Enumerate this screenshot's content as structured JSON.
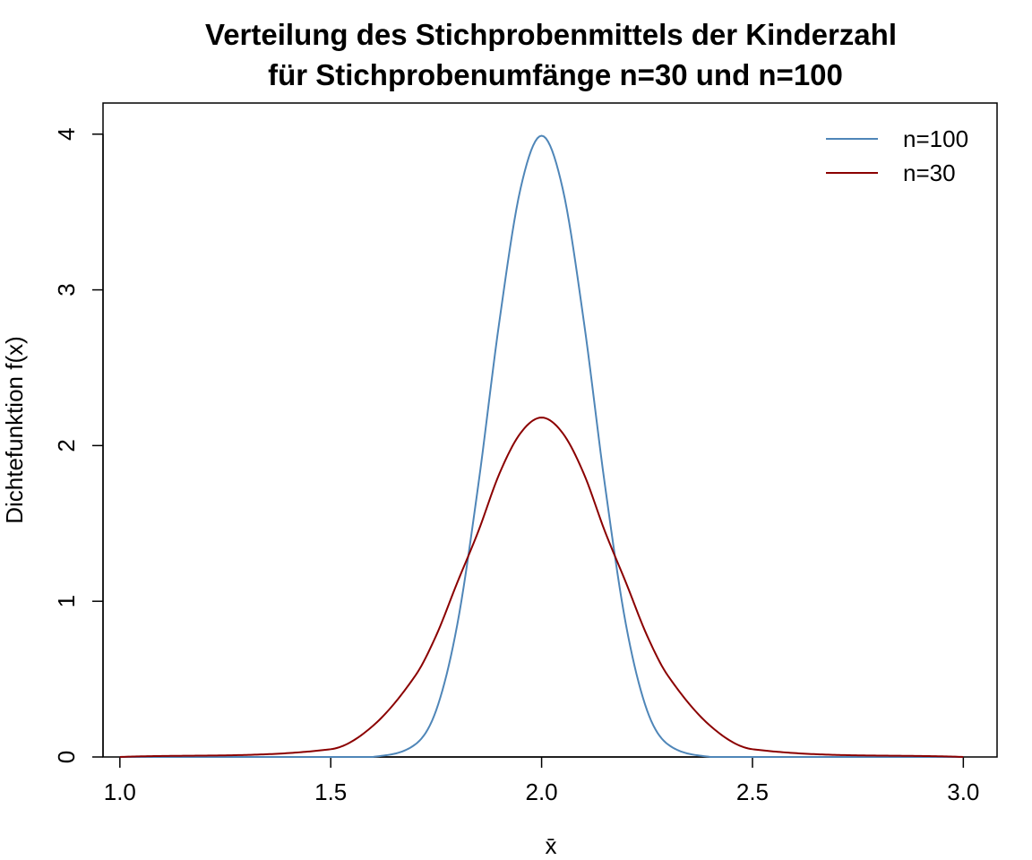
{
  "chart_data": {
    "type": "line",
    "title": "Verteilung des Stichprobenmittels der Kinderzahl",
    "subtitle": "für Stichprobenumfänge n=30 und n=100",
    "xlabel": "x̄",
    "ylabel": "Dichtefunktion f(x)",
    "xlim": [
      0.96,
      3.08
    ],
    "ylim": [
      0,
      4.2
    ],
    "x_ticks": [
      1.0,
      1.5,
      2.0,
      2.5,
      3.0
    ],
    "x_tick_labels": [
      "1.0",
      "1.5",
      "2.0",
      "2.5",
      "3.0"
    ],
    "y_ticks": [
      0,
      1,
      2,
      3,
      4
    ],
    "y_tick_labels": [
      "0",
      "1",
      "2",
      "3",
      "4"
    ],
    "grid": false,
    "legend_position": "top-right",
    "x": [
      1.0,
      1.5,
      1.6,
      1.7,
      1.75,
      1.8,
      1.85,
      1.9,
      1.95,
      2.0,
      2.05,
      2.1,
      2.15,
      2.2,
      2.25,
      2.3,
      2.4,
      2.5,
      3.0
    ],
    "series": [
      {
        "name": "n=100",
        "color": "#4f86b8",
        "values": [
          0.0,
          0.0,
          0.0,
          0.08,
          0.3,
          0.85,
          1.75,
          2.8,
          3.65,
          3.99,
          3.65,
          2.8,
          1.75,
          0.85,
          0.3,
          0.08,
          0.0,
          0.0,
          0.0
        ]
      },
      {
        "name": "n=30",
        "color": "#8b0000",
        "values": [
          0.0,
          0.05,
          0.2,
          0.52,
          0.78,
          1.12,
          1.45,
          1.82,
          2.08,
          2.18,
          2.08,
          1.82,
          1.45,
          1.12,
          0.78,
          0.52,
          0.2,
          0.05,
          0.0
        ]
      }
    ]
  }
}
